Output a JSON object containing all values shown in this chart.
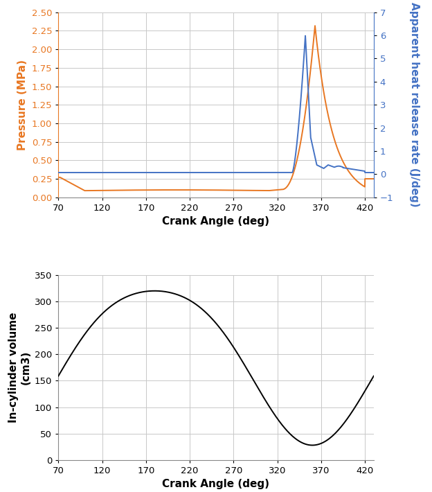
{
  "xlabel": "Crank Angle (deg)",
  "ylabel_pressure": "Pressure (MPa)",
  "ylabel_ahrr": "Apparent heat release rate (J/deg)",
  "ylabel_volume": "In-cylinder volume\n(cm3)",
  "x_min": 70,
  "x_max": 430,
  "x_ticks": [
    70,
    120,
    170,
    220,
    270,
    320,
    370,
    420
  ],
  "pressure_ylim": [
    0,
    2.5
  ],
  "pressure_yticks": [
    0,
    0.25,
    0.5,
    0.75,
    1.0,
    1.25,
    1.5,
    1.75,
    2.0,
    2.25,
    2.5
  ],
  "ahrr_ylim": [
    -1,
    7
  ],
  "ahrr_yticks": [
    -1,
    0,
    1,
    2,
    3,
    4,
    5,
    6,
    7
  ],
  "volume_ylim": [
    0,
    350
  ],
  "volume_yticks": [
    0,
    50,
    100,
    150,
    200,
    250,
    300,
    350
  ],
  "pressure_color": "#E87722",
  "ahrr_color": "#4472C4",
  "volume_color": "#000000",
  "grid_color": "#C8C8C8",
  "background_color": "#FFFFFF",
  "linewidth": 1.4
}
